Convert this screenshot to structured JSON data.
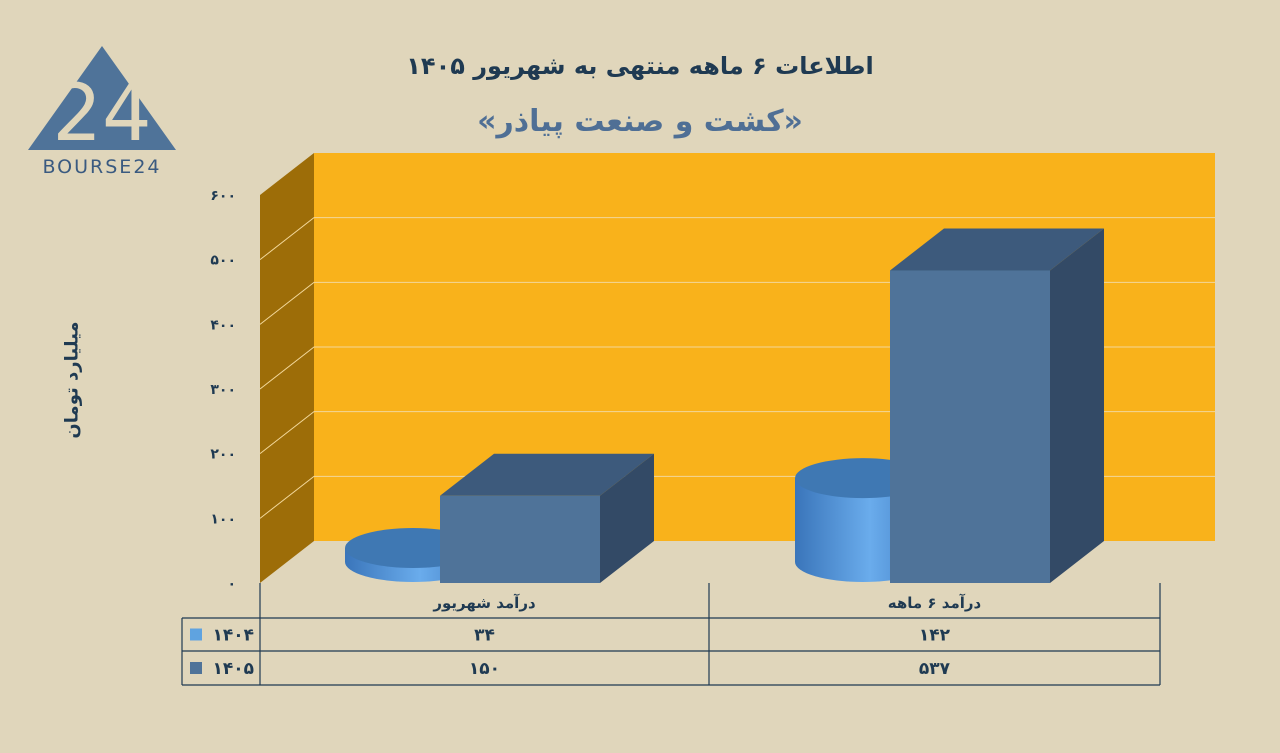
{
  "header": {
    "title": "اطلاعات ۶ ماهه منتهی به شهریور ۱۴۰۵",
    "subtitle": "«کشت و صنعت پیاذر»"
  },
  "logo": {
    "text": "BOURSE24",
    "mark": "24",
    "color": "#4f7399"
  },
  "colors": {
    "background": "#e0d6bb",
    "wall": "#f9b21b",
    "side_wall": "#9d6d08",
    "series_1404": "#5fa3e0",
    "series_1405": "#4f7399"
  },
  "chart_data": {
    "type": "bar",
    "title": "اطلاعات ۶ ماهه منتهی به شهریور ۱۴۰۵",
    "subtitle": "«کشت و صنعت پیاذر»",
    "ylabel": "میلیارد تومان",
    "ylim": [
      0,
      600
    ],
    "yticks": [
      "۰",
      "۱۰۰",
      "۲۰۰",
      "۳۰۰",
      "۴۰۰",
      "۵۰۰",
      "۶۰۰"
    ],
    "ytick_values": [
      0,
      100,
      200,
      300,
      400,
      500,
      600
    ],
    "categories": [
      "درآمد شهریور",
      "درآمد ۶ ماهه"
    ],
    "grid": true,
    "legend_position": "table-left",
    "series": [
      {
        "name": "۱۴۰۴",
        "shape": "cylinder",
        "values": [
          34,
          142
        ],
        "labels": [
          "۳۴",
          "۱۴۲"
        ]
      },
      {
        "name": "۱۴۰۵",
        "shape": "box",
        "values": [
          150,
          537
        ],
        "labels": [
          "۱۵۰",
          "۵۳۷"
        ]
      }
    ]
  }
}
